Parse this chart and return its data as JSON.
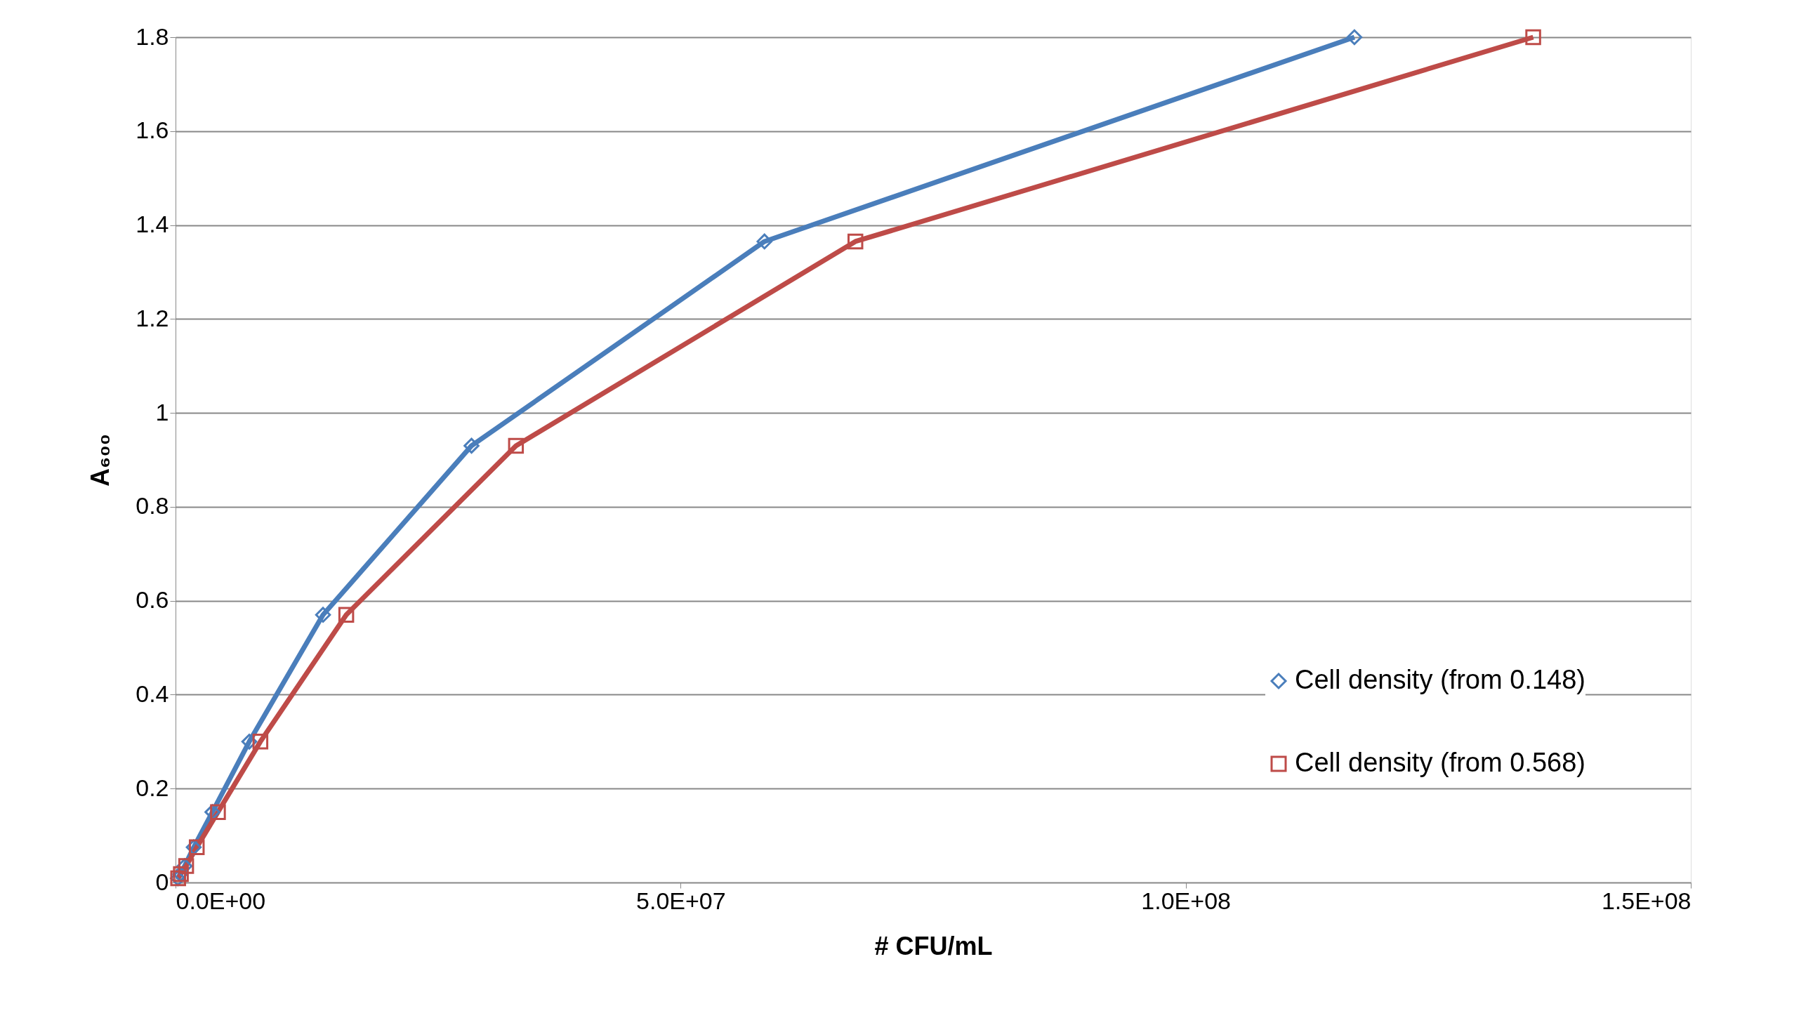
{
  "chart_data": {
    "type": "line",
    "xlabel": "# CFU/mL",
    "ylabel": "A₆₀₀",
    "xlim": [
      0,
      150000000
    ],
    "xticks": [
      {
        "value": 0,
        "label": "0.0E+00"
      },
      {
        "value": 50000000,
        "label": "5.0E+07"
      },
      {
        "value": 100000000,
        "label": "1.0E+08"
      },
      {
        "value": 150000000,
        "label": "1.5E+08"
      }
    ],
    "ylim": [
      0,
      1.8
    ],
    "yticks": [
      0,
      0.2,
      0.4,
      0.6,
      0.8,
      1,
      1.2,
      1.4,
      1.6,
      1.8
    ],
    "grid": "y",
    "legend": "bottom right",
    "line_style": "solid",
    "series": [
      {
        "name": "Cell density (from 0.148)",
        "color": "#4a7ebb",
        "marker": "diamond",
        "x": [
          230000,
          450000,
          900000,
          1800000,
          3650000,
          7300000,
          14600000,
          29300000,
          58300000,
          116700000
        ],
        "values": [
          0.009,
          0.018,
          0.035,
          0.075,
          0.15,
          0.3,
          0.57,
          0.93,
          1.365,
          1.8
        ]
      },
      {
        "name": "Cell density (from 0.568)",
        "color": "#be4b48",
        "marker": "square",
        "x": [
          260000,
          530000,
          1050000,
          2100000,
          4200000,
          8400000,
          16900000,
          33700000,
          67300000,
          134400000
        ],
        "values": [
          0.009,
          0.018,
          0.035,
          0.075,
          0.15,
          0.3,
          0.57,
          0.93,
          1.365,
          1.8
        ]
      }
    ]
  }
}
